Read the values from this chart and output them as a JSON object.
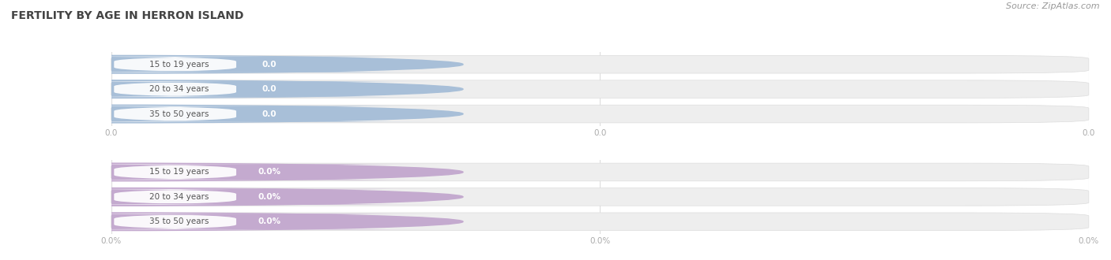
{
  "title": "FERTILITY BY AGE IN HERRON ISLAND",
  "source": "Source: ZipAtlas.com",
  "top_section": {
    "categories": [
      "15 to 19 years",
      "20 to 34 years",
      "35 to 50 years"
    ],
    "values": [
      0.0,
      0.0,
      0.0
    ],
    "bar_color": "#a8bfd8",
    "value_label": [
      "0.0",
      "0.0",
      "0.0"
    ]
  },
  "bottom_section": {
    "categories": [
      "15 to 19 years",
      "20 to 34 years",
      "35 to 50 years"
    ],
    "values": [
      0.0,
      0.0,
      0.0
    ],
    "bar_color": "#c4aacf",
    "value_label": [
      "0.0%",
      "0.0%",
      "0.0%"
    ]
  },
  "bg_bar_color": "#eeeeee",
  "label_text_color": "#555555",
  "value_text_color": "#ffffff",
  "title_color": "#444444",
  "source_color": "#999999",
  "axis_tick_label_color": "#aaaaaa",
  "grid_color": "#dddddd",
  "top_xtick_labels": [
    "0.0",
    "0.0",
    "0.0"
  ],
  "bottom_xtick_labels": [
    "0.0%",
    "0.0%",
    "0.0%"
  ]
}
